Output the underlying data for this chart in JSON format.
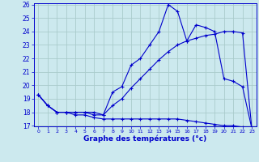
{
  "xlabel": "Graphe des températures (°c)",
  "background_color": "#cce9ee",
  "grid_color": "#aacccc",
  "line_color": "#0000cc",
  "hours": [
    0,
    1,
    2,
    3,
    4,
    5,
    6,
    7,
    8,
    9,
    10,
    11,
    12,
    13,
    14,
    15,
    16,
    17,
    18,
    19,
    20,
    21,
    22,
    23
  ],
  "temp_max": [
    19.3,
    18.5,
    18.0,
    18.0,
    18.0,
    18.0,
    18.0,
    17.8,
    19.5,
    19.9,
    21.5,
    22.0,
    23.0,
    24.0,
    26.0,
    25.5,
    23.3,
    24.5,
    24.3,
    24.0,
    20.5,
    20.3,
    19.9,
    16.8
  ],
  "temp_mean": [
    19.3,
    18.5,
    18.0,
    18.0,
    18.0,
    18.0,
    17.8,
    17.8,
    18.5,
    19.0,
    19.8,
    20.5,
    21.2,
    21.9,
    22.5,
    23.0,
    23.3,
    23.5,
    23.7,
    23.8,
    24.0,
    24.0,
    23.9,
    16.8
  ],
  "temp_min": [
    19.3,
    18.5,
    18.0,
    18.0,
    17.8,
    17.8,
    17.6,
    17.5,
    17.5,
    17.5,
    17.5,
    17.5,
    17.5,
    17.5,
    17.5,
    17.5,
    17.4,
    17.3,
    17.2,
    17.1,
    17.0,
    17.0,
    16.9,
    16.8
  ],
  "ylim_min": 17,
  "ylim_max": 26,
  "yticks": [
    17,
    18,
    19,
    20,
    21,
    22,
    23,
    24,
    25,
    26
  ],
  "marker": "+"
}
